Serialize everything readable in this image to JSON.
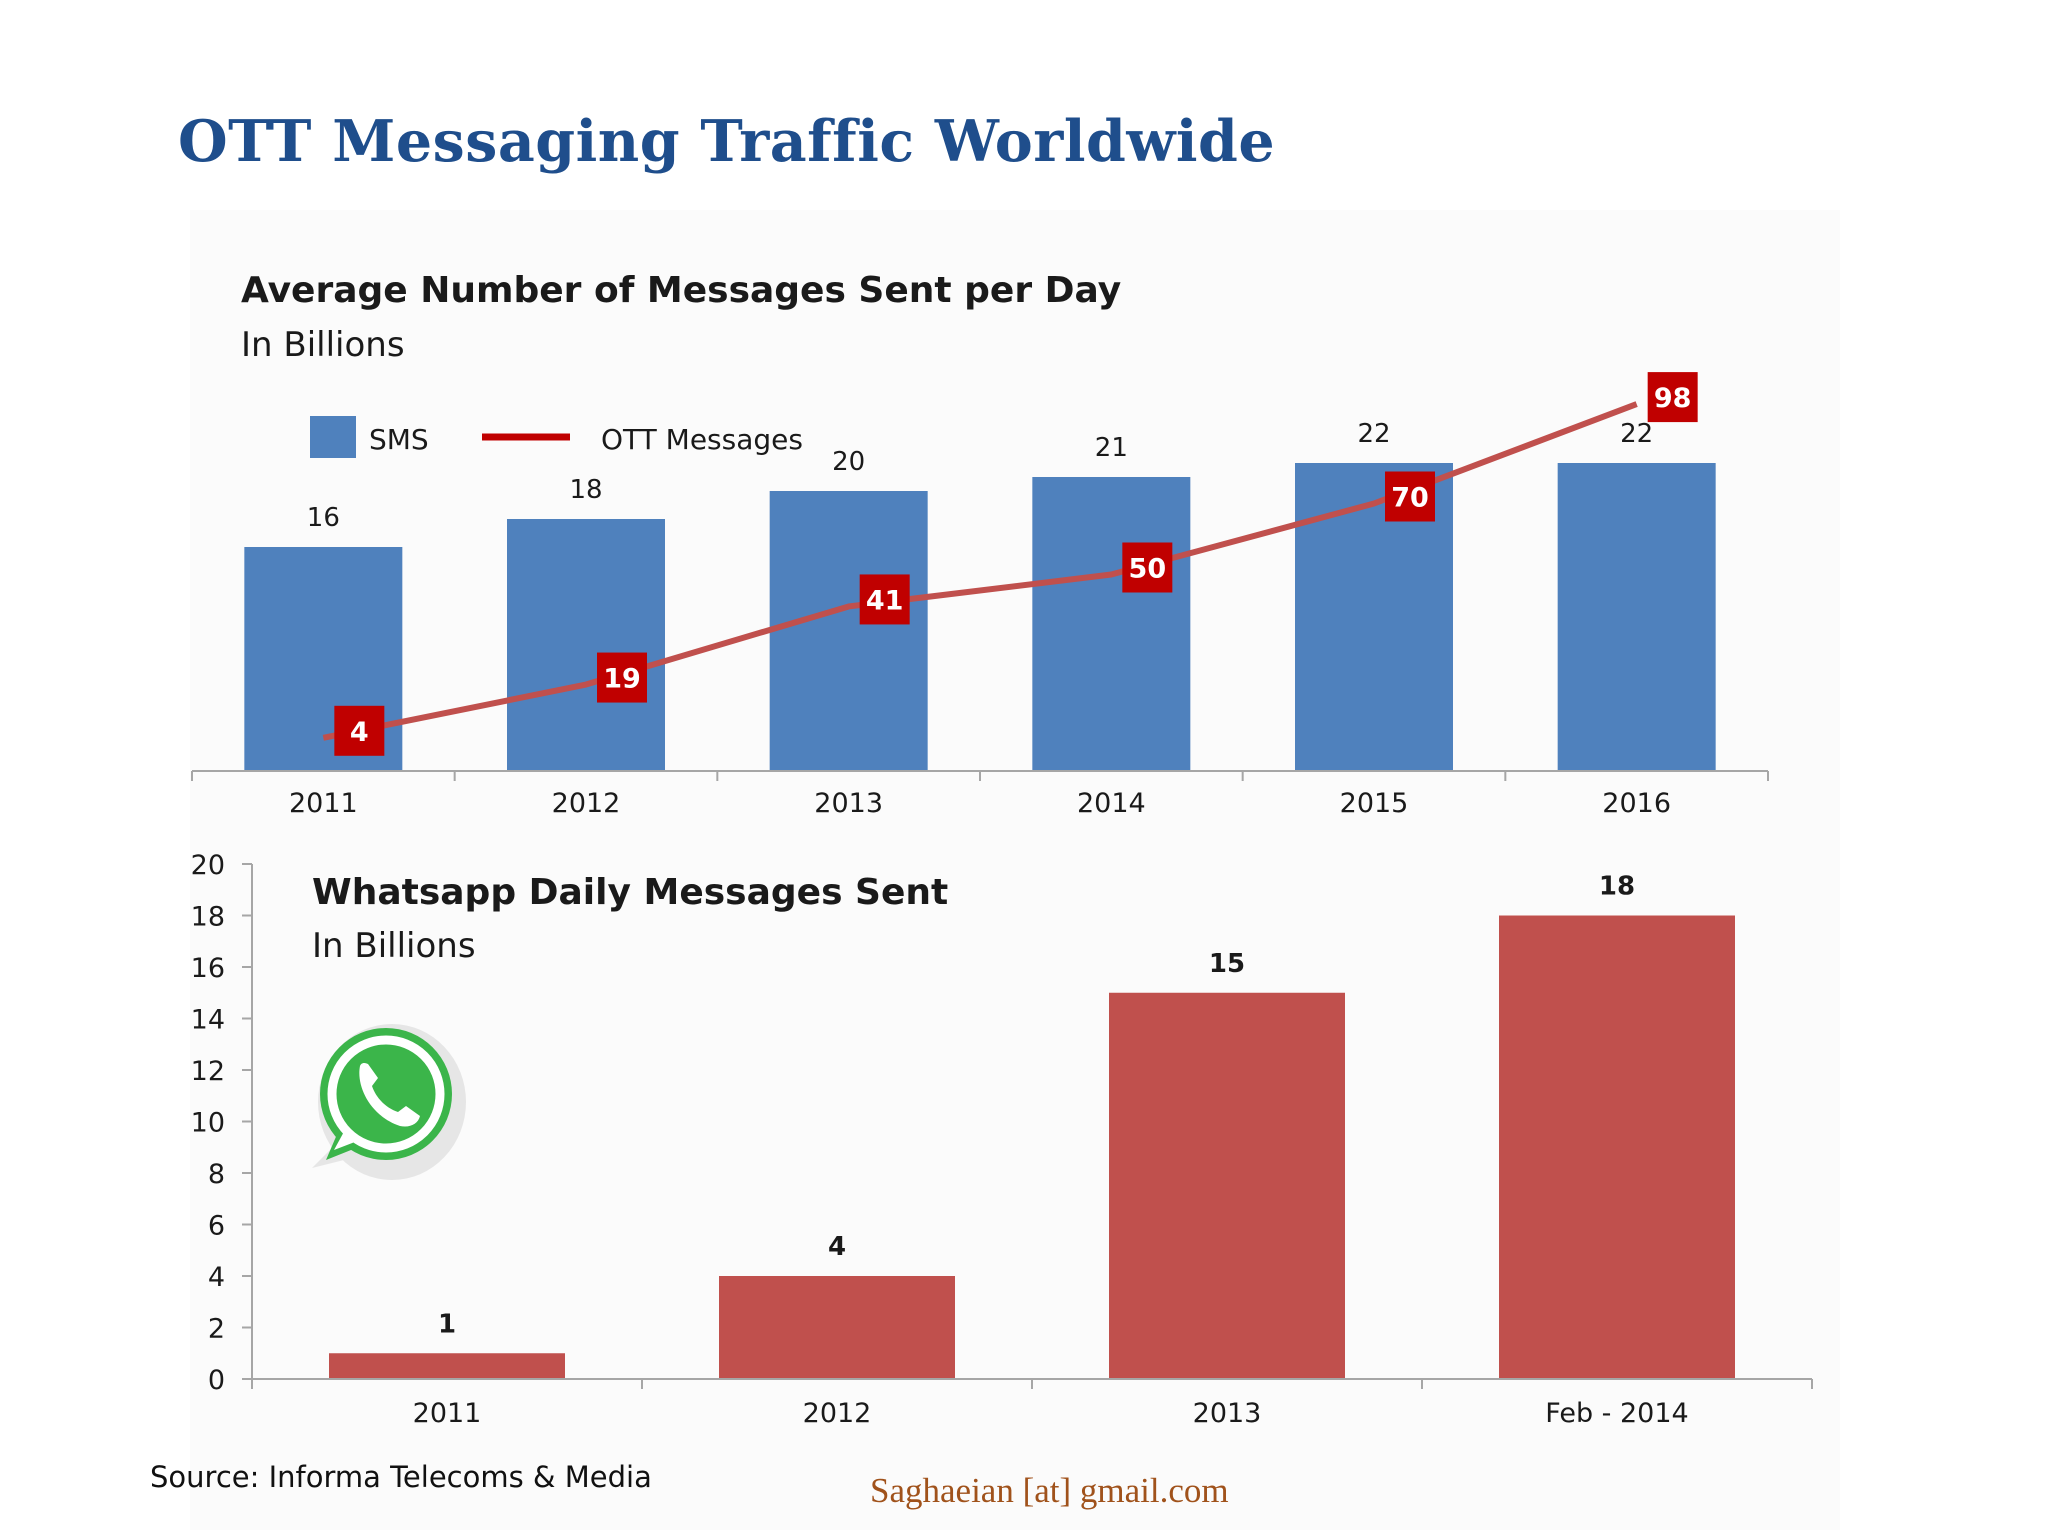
{
  "page": {
    "title": "OTT Messaging Traffic Worldwide",
    "source": "Source: Informa Telecoms & Media",
    "credit": "Saghaeian [at] gmail.com"
  },
  "logo": {
    "icon": "whatsapp-logo-icon"
  },
  "colors": {
    "title": "#1f4e8c",
    "sms": "#4f81bd",
    "ott": "#c0504d",
    "ott_label_bg": "#c00000",
    "whatsapp_bar": "#c0504d",
    "whatsapp_green": "#3bb54a"
  },
  "chart_data": [
    {
      "type": "bar",
      "title": "Average Number of Messages Sent per Day",
      "subtitle": "In Billions",
      "categories": [
        "2011",
        "2012",
        "2013",
        "2014",
        "2015",
        "2016"
      ],
      "series": [
        {
          "name": "SMS",
          "type": "bar",
          "values": [
            16,
            18,
            20,
            21,
            22,
            22
          ]
        },
        {
          "name": "OTT Messages",
          "type": "line",
          "values": [
            4,
            19,
            41,
            50,
            70,
            98
          ]
        }
      ],
      "legend": "top-left",
      "grid": false
    },
    {
      "type": "bar",
      "title": "Whatsapp Daily Messages Sent",
      "subtitle": "In Billions",
      "categories": [
        "2011",
        "2012",
        "2013",
        "Feb - 2014"
      ],
      "values": [
        1,
        4,
        15,
        18
      ],
      "ylim": [
        0,
        20
      ],
      "yticks": [
        "0",
        "2",
        "4",
        "6",
        "8",
        "10",
        "12",
        "14",
        "16",
        "18",
        "20"
      ],
      "grid": false
    }
  ]
}
